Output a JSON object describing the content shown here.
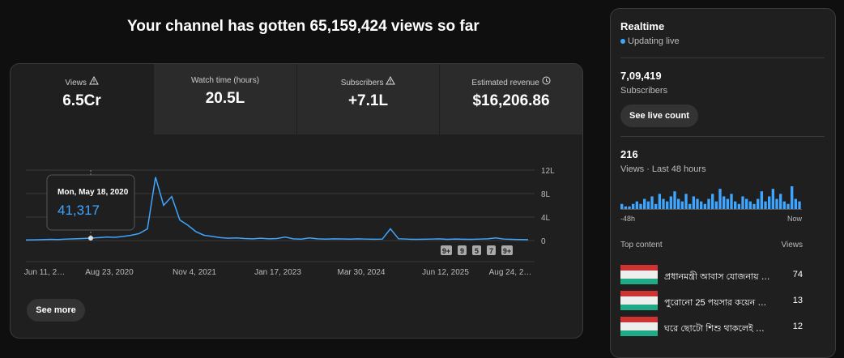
{
  "header": {
    "title": "Your channel has gotten 65,159,424 views so far"
  },
  "tabs": [
    {
      "label": "Views",
      "value": "6.5Cr"
    },
    {
      "label": "Watch time (hours)",
      "value": "20.5L"
    },
    {
      "label": "Subscribers",
      "value": "+7.1L"
    },
    {
      "label": "Estimated revenue",
      "value": "$16,206.86"
    }
  ],
  "chart_data": [
    {
      "type": "line",
      "color": "#3ea6ff",
      "values": [
        10000,
        12000,
        15000,
        20000,
        18000,
        25000,
        30000,
        35000,
        41317,
        50000,
        60000,
        55000,
        70000,
        90000,
        120000,
        200000,
        1080000,
        600000,
        750000,
        350000,
        260000,
        150000,
        90000,
        70000,
        50000,
        40000,
        45000,
        35000,
        30000,
        40000,
        30000,
        35000,
        60000,
        30000,
        25000,
        45000,
        30000,
        25000,
        30000,
        28000,
        25000,
        30000,
        25000,
        22000,
        25000,
        200000,
        30000,
        25000,
        20000,
        22000,
        25000,
        30000,
        20000,
        25000,
        22000,
        20000,
        25000,
        30000,
        45000,
        25000,
        20000,
        18000,
        15000
      ],
      "ylim": [
        0,
        1200000
      ],
      "yticks": [
        {
          "value": 1200000,
          "label": "12L"
        },
        {
          "value": 800000,
          "label": "8L"
        },
        {
          "value": 400000,
          "label": "4L"
        },
        0
      ],
      "x_labels": [
        "Jun 11, 2…",
        "Aug 23, 2020",
        "Nov 4, 2021",
        "Jan 17, 2023",
        "Mar 30, 2024",
        "Jun 12, 2025",
        "Aug 24, 2…"
      ],
      "tooltip": {
        "date": "Mon, May 18, 2020",
        "value_label": "41,317"
      },
      "badges": [
        "9+",
        "9",
        "5",
        "7",
        "9+"
      ]
    },
    {
      "type": "bar",
      "color": "#3ea6ff",
      "values": [
        2,
        1,
        1,
        2,
        3,
        2,
        4,
        3,
        5,
        2,
        6,
        4,
        3,
        5,
        7,
        4,
        3,
        6,
        2,
        5,
        4,
        3,
        2,
        4,
        6,
        3,
        8,
        5,
        4,
        6,
        3,
        2,
        5,
        4,
        3,
        2,
        4,
        7,
        3,
        5,
        8,
        4,
        6,
        3,
        2,
        9,
        4,
        3
      ],
      "x_labels": [
        "-48h",
        "Now"
      ]
    }
  ],
  "see_more": "See more",
  "realtime": {
    "title": "Realtime",
    "status": "Updating live",
    "subscribers": "7,09,419",
    "subscribers_label": "Subscribers",
    "button": "See live count",
    "views": "216",
    "views_label": "Views · Last 48 hours",
    "top_content": "Top content",
    "views_header": "Views",
    "items": [
      {
        "title": "প্রধানমন্ত্রী আবাস যোজনায় …",
        "views": 74
      },
      {
        "title": "পুরোনো 25 পয়সার কয়েন …",
        "views": 13
      },
      {
        "title": "ঘরে ছোটো শিশু থাকলেই …",
        "views": 12
      }
    ]
  }
}
